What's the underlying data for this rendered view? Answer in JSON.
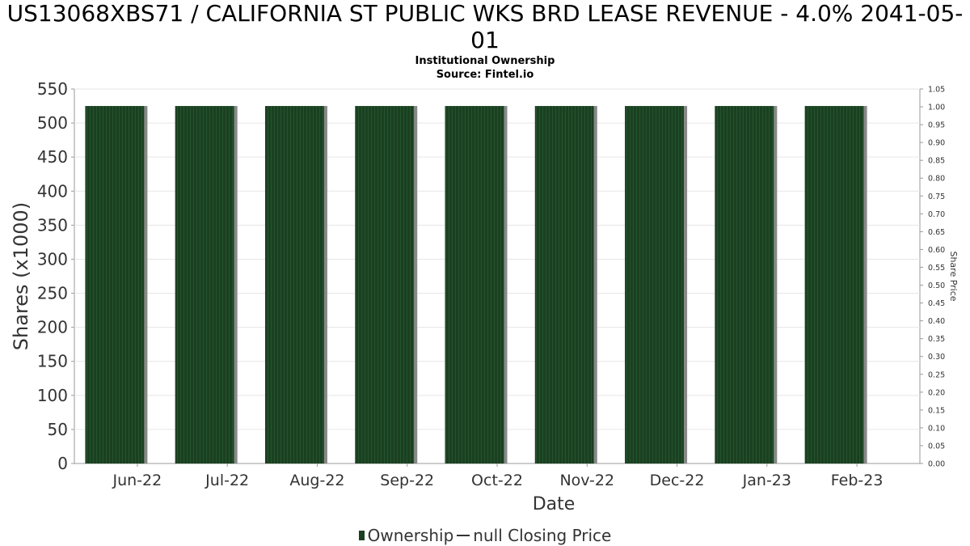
{
  "title_line1": "US13068XBS71 / CALIFORNIA ST PUBLIC WKS BRD LEASE REVENUE - 4.0% 2041-05-",
  "title_line2": "01",
  "subtitle1": "Institutional Ownership",
  "subtitle2": "Source: Fintel.io",
  "legend": {
    "ownership": "Ownership",
    "price": "null Closing Price"
  },
  "colors": {
    "bar": "#1a4021",
    "bar_shadow": "#888888",
    "grid": "#e6e6e6",
    "axis": "#999999"
  },
  "chart_data": {
    "type": "bar",
    "categories": [
      "Jun-22",
      "Jul-22",
      "Aug-22",
      "Sep-22",
      "Oct-22",
      "Nov-22",
      "Dec-22",
      "Jan-23",
      "Feb-23"
    ],
    "series": [
      {
        "name": "Ownership",
        "values": [
          525,
          525,
          525,
          525,
          525,
          525,
          525,
          525,
          525
        ]
      }
    ],
    "xlabel": "Date",
    "ylabel": "Shares (x1000)",
    "ylim": [
      0,
      550
    ],
    "yticks": [
      0,
      50,
      100,
      150,
      200,
      250,
      300,
      350,
      400,
      450,
      500,
      550
    ],
    "y2label": "Share Price",
    "y2lim": [
      0,
      1.05
    ],
    "y2ticks": [
      "0.00",
      "0.05",
      "0.10",
      "0.15",
      "0.20",
      "0.25",
      "0.30",
      "0.35",
      "0.40",
      "0.45",
      "0.50",
      "0.55",
      "0.60",
      "0.65",
      "0.70",
      "0.75",
      "0.80",
      "0.85",
      "0.90",
      "0.95",
      "1.00",
      "1.05"
    ],
    "grid": true,
    "legend_position": "bottom"
  }
}
